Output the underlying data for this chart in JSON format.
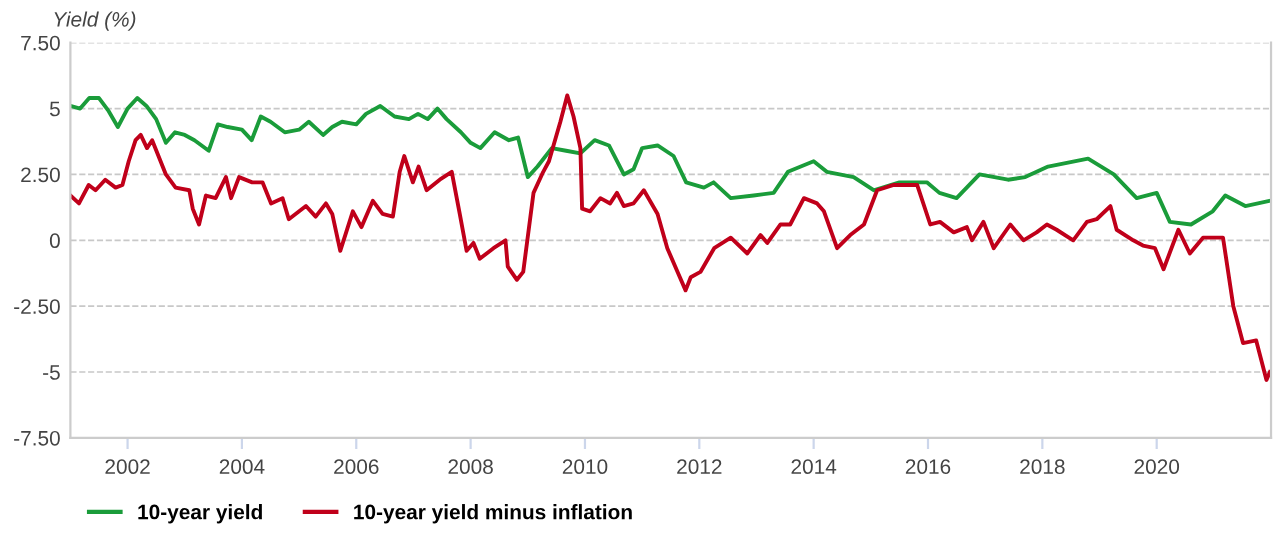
{
  "chart_data": {
    "type": "line",
    "ylabel": "Yield (%)",
    "xlim": [
      2001,
      2022
    ],
    "xticks": [
      2002,
      2004,
      2006,
      2008,
      2010,
      2012,
      2014,
      2016,
      2018,
      2020
    ],
    "ylim": [
      -7.5,
      7.5
    ],
    "yticks": [
      {
        "value": 7.5,
        "label": "7.50"
      },
      5,
      {
        "value": 2.5,
        "label": "2.50"
      },
      0,
      {
        "value": -2.5,
        "label": "-2.50"
      },
      {
        "value": -5,
        "label": "-5"
      },
      {
        "value": -7.5,
        "label": "-7.50"
      }
    ],
    "grid": "y",
    "legend": "bottom",
    "marker": "none",
    "line_style": "solid",
    "series": [
      {
        "name": "10-year yield",
        "color": "#1a9c3a",
        "x": [
          2001.0,
          2001.17,
          2001.33,
          2001.5,
          2001.67,
          2001.83,
          2002.0,
          2002.17,
          2002.33,
          2002.5,
          2002.67,
          2002.83,
          2003.0,
          2003.17,
          2003.42,
          2003.58,
          2003.75,
          2004.0,
          2004.17,
          2004.33,
          2004.5,
          2004.75,
          2005.0,
          2005.17,
          2005.42,
          2005.58,
          2005.75,
          2006.0,
          2006.17,
          2006.42,
          2006.67,
          2006.92,
          2007.08,
          2007.25,
          2007.42,
          2007.58,
          2007.83,
          2008.0,
          2008.17,
          2008.42,
          2008.67,
          2008.83,
          2009.0,
          2009.17,
          2009.42,
          2009.67,
          2009.92,
          2010.17,
          2010.42,
          2010.68,
          2010.85,
          2011.0,
          2011.27,
          2011.55,
          2011.77,
          2012.08,
          2012.25,
          2012.55,
          2012.95,
          2013.3,
          2013.55,
          2014.0,
          2014.23,
          2014.7,
          2015.05,
          2015.5,
          2015.98,
          2016.2,
          2016.5,
          2016.9,
          2017.4,
          2017.7,
          2018.1,
          2018.8,
          2019.25,
          2019.65,
          2020.0,
          2020.23,
          2020.6,
          2020.98,
          2021.2,
          2021.55,
          2021.98
        ],
        "values": [
          5.1,
          5.0,
          5.4,
          5.4,
          4.9,
          4.3,
          5.0,
          5.4,
          5.1,
          4.6,
          3.7,
          4.1,
          4.0,
          3.8,
          3.4,
          4.4,
          4.3,
          4.2,
          3.8,
          4.7,
          4.5,
          4.1,
          4.2,
          4.5,
          4.0,
          4.3,
          4.5,
          4.4,
          4.8,
          5.1,
          4.7,
          4.6,
          4.8,
          4.6,
          5.0,
          4.6,
          4.1,
          3.7,
          3.5,
          4.1,
          3.8,
          3.9,
          2.4,
          2.8,
          3.5,
          3.4,
          3.3,
          3.8,
          3.6,
          2.5,
          2.7,
          3.5,
          3.6,
          3.2,
          2.2,
          2.0,
          2.2,
          1.6,
          1.7,
          1.8,
          2.6,
          3.0,
          2.6,
          2.4,
          1.9,
          2.2,
          2.2,
          1.8,
          1.6,
          2.5,
          2.3,
          2.4,
          2.8,
          3.1,
          2.5,
          1.6,
          1.8,
          0.7,
          0.6,
          1.1,
          1.7,
          1.3,
          1.5
        ]
      },
      {
        "name": "10-year yield minus inflation",
        "color": "#c0001a",
        "x": [
          2001.0,
          2001.15,
          2001.32,
          2001.44,
          2001.61,
          2001.79,
          2001.91,
          2002.02,
          2002.14,
          2002.23,
          2002.34,
          2002.43,
          2002.67,
          2002.84,
          2003.08,
          2003.14,
          2003.25,
          2003.37,
          2003.54,
          2003.72,
          2003.81,
          2003.95,
          2004.18,
          2004.36,
          2004.51,
          2004.71,
          2004.82,
          2005.12,
          2005.29,
          2005.47,
          2005.58,
          2005.72,
          2005.94,
          2006.09,
          2006.29,
          2006.46,
          2006.64,
          2006.76,
          2006.84,
          2006.99,
          2007.09,
          2007.23,
          2007.46,
          2007.67,
          2007.81,
          2007.93,
          2008.05,
          2008.16,
          2008.4,
          2008.61,
          2008.65,
          2008.81,
          2008.92,
          2008.98,
          2009.1,
          2009.27,
          2009.37,
          2009.57,
          2009.69,
          2009.8,
          2009.92,
          2009.95,
          2010.09,
          2010.27,
          2010.44,
          2010.56,
          2010.68,
          2010.85,
          2011.03,
          2011.27,
          2011.44,
          2011.62,
          2011.76,
          2011.85,
          2012.02,
          2012.26,
          2012.55,
          2012.84,
          2013.07,
          2013.19,
          2013.42,
          2013.59,
          2013.83,
          2014.06,
          2014.18,
          2014.41,
          2014.64,
          2014.88,
          2015.11,
          2015.4,
          2015.81,
          2016.04,
          2016.21,
          2016.45,
          2016.68,
          2016.77,
          2016.97,
          2017.15,
          2017.44,
          2017.67,
          2017.9,
          2018.08,
          2018.25,
          2018.54,
          2018.78,
          2018.95,
          2019.19,
          2019.3,
          2019.59,
          2019.76,
          2019.97,
          2020.12,
          2020.38,
          2020.58,
          2020.81,
          2021.16,
          2021.34,
          2021.51,
          2021.74,
          2021.92,
          2021.98
        ],
        "values": [
          1.7,
          1.4,
          2.1,
          1.9,
          2.3,
          2.0,
          2.1,
          3.0,
          3.8,
          4.0,
          3.5,
          3.8,
          2.5,
          2.0,
          1.9,
          1.2,
          0.6,
          1.7,
          1.6,
          2.4,
          1.6,
          2.4,
          2.2,
          2.2,
          1.4,
          1.6,
          0.8,
          1.3,
          0.9,
          1.4,
          1.0,
          -0.4,
          1.1,
          0.5,
          1.5,
          1.0,
          0.9,
          2.6,
          3.2,
          2.2,
          2.8,
          1.9,
          2.3,
          2.6,
          1.0,
          -0.4,
          -0.1,
          -0.7,
          -0.3,
          0.0,
          -1.0,
          -1.5,
          -1.2,
          -0.2,
          1.8,
          2.6,
          3.0,
          4.5,
          5.5,
          4.7,
          3.5,
          1.2,
          1.1,
          1.6,
          1.4,
          1.8,
          1.3,
          1.4,
          1.9,
          1.0,
          -0.3,
          -1.2,
          -1.9,
          -1.4,
          -1.2,
          -0.3,
          0.1,
          -0.5,
          0.2,
          -0.1,
          0.6,
          0.6,
          1.6,
          1.4,
          1.1,
          -0.3,
          0.2,
          0.6,
          1.9,
          2.1,
          2.1,
          0.6,
          0.7,
          0.3,
          0.5,
          0.0,
          0.7,
          -0.3,
          0.6,
          0.0,
          0.3,
          0.6,
          0.4,
          0.0,
          0.7,
          0.8,
          1.3,
          0.4,
          0.0,
          -0.2,
          -0.3,
          -1.1,
          0.4,
          -0.5,
          0.1,
          0.1,
          -2.5,
          -3.9,
          -3.8,
          -5.3,
          -5.0
        ]
      }
    ]
  }
}
